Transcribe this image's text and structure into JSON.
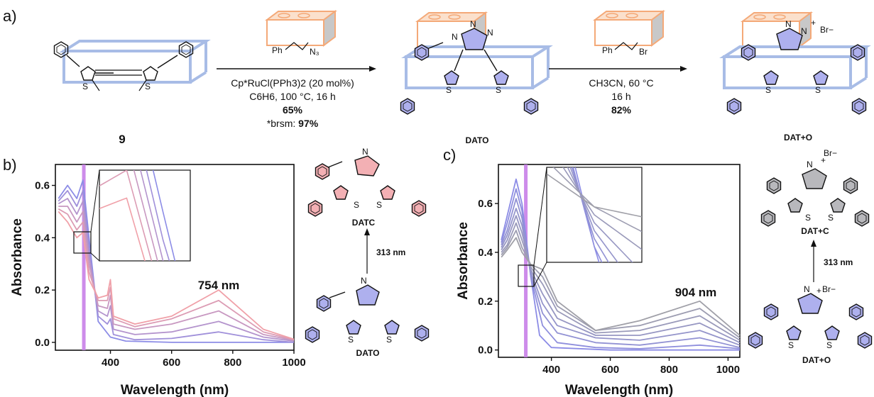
{
  "panels": {
    "a": "a)",
    "b": "b)",
    "c": "c)"
  },
  "scheme": {
    "start_label": "9",
    "step1": {
      "reagent": "Ph N3",
      "cond1": "Cp*RuCl(PPh3)2 (20 mol%)",
      "cond2": "C6H6, 100 °C, 16 h",
      "yield": "65%",
      "brsm_prefix": "*brsm: ",
      "brsm": "97%"
    },
    "intermediate_label": "DATO",
    "step2": {
      "reagent": "Ph Br",
      "cond1": "CH3CN, 60 °C",
      "cond2": "16 h",
      "yield": "82%"
    },
    "product_label": "DAT+O"
  },
  "photo": {
    "b_top": "DATC",
    "b_bottom": "DATO",
    "b_irradiation": "313 nm",
    "c_top": "DAT+C",
    "c_bottom": "DAT+O",
    "c_irradiation": "313 nm",
    "counterion": "Br−"
  },
  "colors": {
    "open_form": "#8c8ce6",
    "closed_form_b": "#f0a0a8",
    "closed_form_c": "#a0a0a8",
    "irradiation_band": "#c880e8",
    "cage": "#f4a978",
    "macrocycle": "#a8bce6"
  },
  "chart_data": [
    {
      "type": "line",
      "panel": "b",
      "title": "",
      "xlabel": "Wavelength (nm)",
      "ylabel": "Absorbance",
      "xlim": [
        220,
        1000
      ],
      "ylim": [
        -0.03,
        0.68
      ],
      "x_ticks": [
        400,
        600,
        800,
        1000
      ],
      "y_ticks": [
        0.0,
        0.2,
        0.4,
        0.6
      ],
      "annotation": "754 nm",
      "irradiation_nm": 313,
      "peak_nm": 754,
      "series_note": "photocyclization series, open (blue) to closed (pink)",
      "series": [
        {
          "values": [
            [
              230,
              0.55
            ],
            [
              260,
              0.6
            ],
            [
              290,
              0.55
            ],
            [
              310,
              0.62
            ],
            [
              330,
              0.4
            ],
            [
              360,
              0.08
            ],
            [
              400,
              0.02
            ],
            [
              450,
              0.005
            ],
            [
              600,
              0.0
            ],
            [
              754,
              0.0
            ],
            [
              1000,
              0.0
            ]
          ]
        },
        {
          "values": [
            [
              230,
              0.54
            ],
            [
              260,
              0.58
            ],
            [
              290,
              0.52
            ],
            [
              310,
              0.58
            ],
            [
              330,
              0.36
            ],
            [
              360,
              0.1
            ],
            [
              390,
              0.07
            ],
            [
              400,
              0.09
            ],
            [
              410,
              0.03
            ],
            [
              480,
              0.01
            ],
            [
              600,
              0.015
            ],
            [
              754,
              0.04
            ],
            [
              900,
              0.01
            ],
            [
              1000,
              0.0
            ]
          ]
        },
        {
          "values": [
            [
              230,
              0.53
            ],
            [
              260,
              0.55
            ],
            [
              290,
              0.49
            ],
            [
              310,
              0.54
            ],
            [
              330,
              0.33
            ],
            [
              360,
              0.12
            ],
            [
              390,
              0.1
            ],
            [
              400,
              0.14
            ],
            [
              410,
              0.05
            ],
            [
              480,
              0.03
            ],
            [
              600,
              0.04
            ],
            [
              754,
              0.08
            ],
            [
              900,
              0.02
            ],
            [
              1000,
              0.005
            ]
          ]
        },
        {
          "values": [
            [
              230,
              0.52
            ],
            [
              260,
              0.52
            ],
            [
              290,
              0.46
            ],
            [
              310,
              0.5
            ],
            [
              330,
              0.3
            ],
            [
              360,
              0.14
            ],
            [
              390,
              0.13
            ],
            [
              400,
              0.18
            ],
            [
              410,
              0.07
            ],
            [
              480,
              0.05
            ],
            [
              600,
              0.07
            ],
            [
              754,
              0.12
            ],
            [
              900,
              0.03
            ],
            [
              1000,
              0.008
            ]
          ]
        },
        {
          "values": [
            [
              230,
              0.51
            ],
            [
              260,
              0.49
            ],
            [
              290,
              0.43
            ],
            [
              310,
              0.46
            ],
            [
              330,
              0.27
            ],
            [
              360,
              0.16
            ],
            [
              390,
              0.16
            ],
            [
              400,
              0.21
            ],
            [
              410,
              0.09
            ],
            [
              480,
              0.06
            ],
            [
              600,
              0.09
            ],
            [
              754,
              0.16
            ],
            [
              900,
              0.04
            ],
            [
              1000,
              0.01
            ]
          ]
        },
        {
          "values": [
            [
              230,
              0.5
            ],
            [
              260,
              0.46
            ],
            [
              290,
              0.4
            ],
            [
              310,
              0.42
            ],
            [
              330,
              0.24
            ],
            [
              360,
              0.17
            ],
            [
              390,
              0.18
            ],
            [
              400,
              0.24
            ],
            [
              410,
              0.1
            ],
            [
              480,
              0.07
            ],
            [
              600,
              0.1
            ],
            [
              754,
              0.2
            ],
            [
              900,
              0.05
            ],
            [
              1000,
              0.012
            ]
          ]
        }
      ]
    },
    {
      "type": "line",
      "panel": "c",
      "title": "",
      "xlabel": "Wavelength (nm)",
      "ylabel": "Absorbance",
      "xlim": [
        220,
        1040
      ],
      "ylim": [
        -0.03,
        0.76
      ],
      "x_ticks": [
        400,
        600,
        800,
        1000
      ],
      "y_ticks": [
        0.0,
        0.2,
        0.4,
        0.6
      ],
      "annotation": "904 nm",
      "irradiation_nm": 313,
      "peak_nm": 904,
      "series_note": "photocyclization series, open (blue) to closed (grey)",
      "series": [
        {
          "values": [
            [
              230,
              0.45
            ],
            [
              250,
              0.55
            ],
            [
              280,
              0.7
            ],
            [
              300,
              0.6
            ],
            [
              330,
              0.3
            ],
            [
              360,
              0.06
            ],
            [
              400,
              0.01
            ],
            [
              600,
              0.0
            ],
            [
              904,
              0.0
            ],
            [
              1040,
              0.0
            ]
          ]
        },
        {
          "values": [
            [
              230,
              0.44
            ],
            [
              250,
              0.52
            ],
            [
              280,
              0.66
            ],
            [
              300,
              0.57
            ],
            [
              330,
              0.3
            ],
            [
              370,
              0.1
            ],
            [
              420,
              0.03
            ],
            [
              550,
              0.01
            ],
            [
              700,
              0.005
            ],
            [
              904,
              0.02
            ],
            [
              1040,
              0.005
            ]
          ]
        },
        {
          "values": [
            [
              230,
              0.43
            ],
            [
              250,
              0.49
            ],
            [
              280,
              0.62
            ],
            [
              300,
              0.54
            ],
            [
              330,
              0.31
            ],
            [
              370,
              0.15
            ],
            [
              420,
              0.07
            ],
            [
              550,
              0.03
            ],
            [
              700,
              0.02
            ],
            [
              904,
              0.05
            ],
            [
              1040,
              0.01
            ]
          ]
        },
        {
          "values": [
            [
              230,
              0.42
            ],
            [
              250,
              0.47
            ],
            [
              280,
              0.58
            ],
            [
              300,
              0.51
            ],
            [
              330,
              0.32
            ],
            [
              370,
              0.19
            ],
            [
              420,
              0.1
            ],
            [
              550,
              0.05
            ],
            [
              700,
              0.04
            ],
            [
              904,
              0.08
            ],
            [
              1040,
              0.02
            ]
          ]
        },
        {
          "values": [
            [
              230,
              0.41
            ],
            [
              250,
              0.45
            ],
            [
              280,
              0.55
            ],
            [
              300,
              0.48
            ],
            [
              330,
              0.33
            ],
            [
              370,
              0.23
            ],
            [
              420,
              0.13
            ],
            [
              550,
              0.06
            ],
            [
              700,
              0.06
            ],
            [
              904,
              0.11
            ],
            [
              1040,
              0.03
            ]
          ]
        },
        {
          "values": [
            [
              230,
              0.4
            ],
            [
              250,
              0.43
            ],
            [
              280,
              0.52
            ],
            [
              300,
              0.45
            ],
            [
              330,
              0.34
            ],
            [
              370,
              0.27
            ],
            [
              420,
              0.16
            ],
            [
              550,
              0.07
            ],
            [
              700,
              0.08
            ],
            [
              904,
              0.14
            ],
            [
              1040,
              0.04
            ]
          ]
        },
        {
          "values": [
            [
              230,
              0.39
            ],
            [
              250,
              0.42
            ],
            [
              280,
              0.49
            ],
            [
              300,
              0.42
            ],
            [
              330,
              0.35
            ],
            [
              370,
              0.3
            ],
            [
              420,
              0.18
            ],
            [
              550,
              0.08
            ],
            [
              700,
              0.1
            ],
            [
              904,
              0.17
            ],
            [
              1040,
              0.05
            ]
          ]
        },
        {
          "values": [
            [
              230,
              0.38
            ],
            [
              250,
              0.41
            ],
            [
              280,
              0.46
            ],
            [
              300,
              0.4
            ],
            [
              330,
              0.35
            ],
            [
              370,
              0.33
            ],
            [
              420,
              0.2
            ],
            [
              550,
              0.08
            ],
            [
              700,
              0.12
            ],
            [
              904,
              0.2
            ],
            [
              1040,
              0.06
            ]
          ]
        }
      ]
    }
  ]
}
